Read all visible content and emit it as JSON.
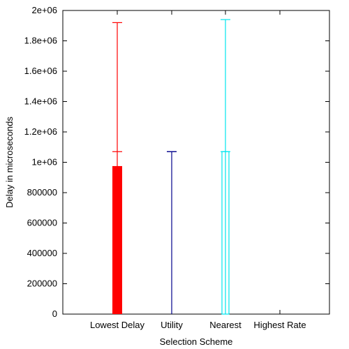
{
  "chart_data": {
    "type": "bar",
    "xlabel": "Selection Scheme",
    "ylabel": "Delay in microseconds",
    "ylim": [
      0,
      2000000
    ],
    "yticks": [
      {
        "value": 0,
        "label": "0"
      },
      {
        "value": 200000,
        "label": "200000"
      },
      {
        "value": 400000,
        "label": "400000"
      },
      {
        "value": 600000,
        "label": "600000"
      },
      {
        "value": 800000,
        "label": "800000"
      },
      {
        "value": 1000000,
        "label": "1e+06"
      },
      {
        "value": 1200000,
        "label": "1.2e+06"
      },
      {
        "value": 1400000,
        "label": "1.4e+06"
      },
      {
        "value": 1600000,
        "label": "1.6e+06"
      },
      {
        "value": 1800000,
        "label": "1.8e+06"
      },
      {
        "value": 2000000,
        "label": "2e+06"
      }
    ],
    "categories": [
      "Lowest Delay",
      "Utility",
      "Nearest",
      "Highest Rate"
    ],
    "bars": [
      {
        "category": "Lowest Delay",
        "value": 975000,
        "error_low": 0,
        "error_mid": 1070000,
        "error_high": 1920000,
        "color": "#ff0000",
        "filled": true
      },
      {
        "category": "Utility",
        "value": 0,
        "error_low": 0,
        "error_mid": 1070000,
        "error_high": 1070000,
        "color": "#00008b",
        "filled": false
      },
      {
        "category": "Nearest",
        "value": 1070000,
        "error_low": 0,
        "error_mid": 1070000,
        "error_high": 1940000,
        "color": "#00e5ee",
        "filled": false
      },
      {
        "category": "Highest Rate",
        "value": 0,
        "error_low": 0,
        "error_mid": 0,
        "error_high": 0,
        "color": "#00aa00",
        "filled": false
      }
    ],
    "grid": false,
    "legend": "none"
  }
}
